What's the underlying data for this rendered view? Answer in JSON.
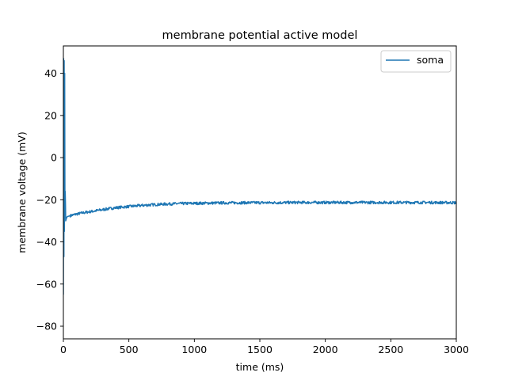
{
  "chart_data": {
    "type": "line",
    "title": "membrane potential active model",
    "xlabel": "time (ms)",
    "ylabel": "membrane voltage (mV)",
    "xlim": [
      0,
      3000
    ],
    "ylim": [
      -86,
      53
    ],
    "x_ticks": [
      0,
      500,
      1000,
      1500,
      2000,
      2500,
      3000
    ],
    "x_tick_labels": [
      "0",
      "500",
      "1000",
      "1500",
      "2000",
      "2500",
      "3000"
    ],
    "y_ticks": [
      -80,
      -60,
      -40,
      -20,
      0,
      20,
      40
    ],
    "y_tick_labels": [
      "−80",
      "−60",
      "−40",
      "−20",
      "0",
      "20",
      "40"
    ],
    "grid": false,
    "legend": {
      "position": "top-right",
      "entries": [
        "soma"
      ]
    },
    "series": [
      {
        "name": "soma",
        "color": "#1f77b4",
        "x": [
          0,
          2,
          4,
          6,
          8,
          10,
          12,
          14,
          16,
          18,
          20,
          25,
          30,
          40,
          50,
          75,
          100,
          150,
          200,
          250,
          300,
          350,
          400,
          450,
          500,
          600,
          700,
          800,
          900,
          1000,
          1200,
          1400,
          1600,
          1800,
          2000,
          2200,
          2400,
          2600,
          2800,
          3000
        ],
        "y": [
          -65,
          47,
          -47,
          46,
          -35,
          40,
          -25,
          -16,
          -22,
          -30,
          -29.5,
          -28.5,
          -28,
          -27.8,
          -27.6,
          -27.2,
          -26.8,
          -26.2,
          -25.7,
          -25.2,
          -24.7,
          -24.2,
          -23.8,
          -23.5,
          -23.2,
          -22.7,
          -22.3,
          -22,
          -21.8,
          -21.7,
          -21.5,
          -21.4,
          -21.4,
          -21.3,
          -21.3,
          -21.3,
          -21.3,
          -21.3,
          -21.3,
          -21.4
        ]
      }
    ]
  }
}
